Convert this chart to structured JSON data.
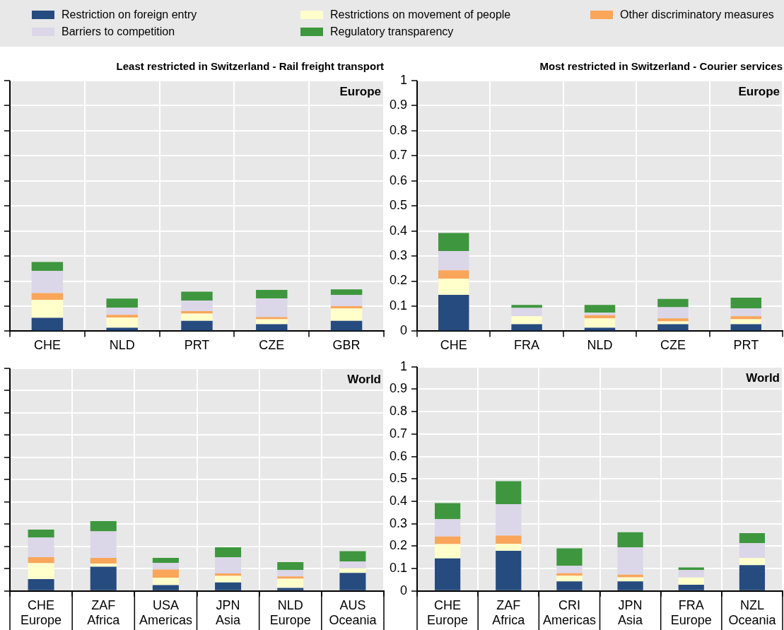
{
  "chart_data": [
    {
      "type": "bar",
      "title": "Least restricted in Switzerland - Rail freight transport",
      "categories": [
        "CHE",
        "NLD",
        "PRT",
        "CZE",
        "GBR"
      ],
      "stacked": true,
      "ylim": [
        0,
        1
      ],
      "yticks": [
        0,
        0.1,
        0.2,
        0.3,
        0.4,
        0.5,
        0.6,
        0.7,
        0.8,
        0.9,
        1
      ],
      "tick_labels": "x",
      "grid": true,
      "legend": "top",
      "annotations": [
        "Europe"
      ],
      "series": [
        {
          "name": "Restriction on foreign entry",
          "color": "#264b7f",
          "values": [
            0.053,
            0.014,
            0.041,
            0.028,
            0.041
          ]
        },
        {
          "name": "Restrictions on movement of people",
          "color": "#ffffcc",
          "values": [
            0.072,
            0.041,
            0.029,
            0.02,
            0.05
          ]
        },
        {
          "name": "Other discriminatory measures",
          "color": "#f9a65a",
          "values": [
            0.027,
            0.01,
            0.01,
            0.008,
            0.009
          ]
        },
        {
          "name": "Barriers to competition",
          "color": "#dcd6e9",
          "values": [
            0.088,
            0.029,
            0.042,
            0.075,
            0.044
          ]
        },
        {
          "name": "Regulatory transparency",
          "color": "#3e973e",
          "values": [
            0.036,
            0.036,
            0.036,
            0.034,
            0.023
          ]
        }
      ]
    },
    {
      "type": "bar",
      "title": "Most restricted in Switzerland - Courier services",
      "categories": [
        "CHE",
        "FRA",
        "NLD",
        "CZE",
        "PRT"
      ],
      "stacked": true,
      "ylim": [
        0,
        1
      ],
      "yticks": [
        0,
        0.1,
        0.2,
        0.3,
        0.4,
        0.5,
        0.6,
        0.7,
        0.8,
        0.9,
        1
      ],
      "grid": true,
      "legend": "top",
      "annotations": [
        "Europe"
      ],
      "series": [
        {
          "name": "Restriction on foreign entry",
          "color": "#264b7f",
          "values": [
            0.145,
            0.028,
            0.014,
            0.028,
            0.028
          ]
        },
        {
          "name": "Restrictions on movement of people",
          "color": "#ffffcc",
          "values": [
            0.064,
            0.032,
            0.037,
            0.011,
            0.02
          ]
        },
        {
          "name": "Other discriminatory measures",
          "color": "#f9a65a",
          "values": [
            0.034,
            0,
            0.013,
            0.012,
            0.012
          ]
        },
        {
          "name": "Barriers to competition",
          "color": "#dcd6e9",
          "values": [
            0.077,
            0.033,
            0.01,
            0.045,
            0.031
          ]
        },
        {
          "name": "Regulatory transparency",
          "color": "#3e973e",
          "values": [
            0.072,
            0.012,
            0.031,
            0.033,
            0.043
          ]
        }
      ]
    },
    {
      "type": "bar",
      "categories": [
        "CHE\nEurope",
        "ZAF\nAfrica",
        "USA\nAmericas",
        "JPN\nAsia",
        "NLD\nEurope",
        "AUS\nOceania"
      ],
      "stacked": true,
      "ylim": [
        0,
        1
      ],
      "yticks": [
        0,
        0.1,
        0.2,
        0.3,
        0.4,
        0.5,
        0.6,
        0.7,
        0.8,
        0.9,
        1
      ],
      "tick_labels": "x",
      "grid": true,
      "legend": "top",
      "annotations": [
        "World"
      ],
      "series": [
        {
          "name": "Restriction on foreign entry",
          "color": "#264b7f",
          "values": [
            0.053,
            0.109,
            0.026,
            0.038,
            0.014,
            0.081
          ]
        },
        {
          "name": "Restrictions on movement of people",
          "color": "#ffffcc",
          "values": [
            0.072,
            0.014,
            0.034,
            0.03,
            0.041,
            0.021
          ]
        },
        {
          "name": "Other discriminatory measures",
          "color": "#f9a65a",
          "values": [
            0.027,
            0.026,
            0.036,
            0.011,
            0.01,
            0
          ]
        },
        {
          "name": "Barriers to competition",
          "color": "#dcd6e9",
          "values": [
            0.088,
            0.119,
            0.03,
            0.072,
            0.029,
            0.031
          ]
        },
        {
          "name": "Regulatory transparency",
          "color": "#3e973e",
          "values": [
            0.036,
            0.046,
            0.023,
            0.045,
            0.036,
            0.046
          ]
        }
      ]
    },
    {
      "type": "bar",
      "categories": [
        "CHE\nEurope",
        "ZAF\nAfrica",
        "CRI\nAmericas",
        "JPN\nAsia",
        "FRA\nEurope",
        "NZL\nOceania"
      ],
      "stacked": true,
      "ylim": [
        0,
        1
      ],
      "yticks": [
        0,
        0.1,
        0.2,
        0.3,
        0.4,
        0.5,
        0.6,
        0.7,
        0.8,
        0.9,
        1
      ],
      "grid": true,
      "legend": "top",
      "annotations": [
        "World"
      ],
      "series": [
        {
          "name": "Restriction on foreign entry",
          "color": "#264b7f",
          "values": [
            0.145,
            0.179,
            0.043,
            0.043,
            0.028,
            0.115
          ]
        },
        {
          "name": "Restrictions on movement of people",
          "color": "#ffffcc",
          "values": [
            0.064,
            0.031,
            0.025,
            0.018,
            0.032,
            0.032
          ]
        },
        {
          "name": "Other discriminatory measures",
          "color": "#f9a65a",
          "values": [
            0.034,
            0.037,
            0.011,
            0.012,
            0,
            0
          ]
        },
        {
          "name": "Barriers to competition",
          "color": "#dcd6e9",
          "values": [
            0.077,
            0.14,
            0.033,
            0.122,
            0.033,
            0.066
          ]
        },
        {
          "name": "Regulatory transparency",
          "color": "#3e973e",
          "values": [
            0.072,
            0.103,
            0.078,
            0.067,
            0.012,
            0.045
          ]
        }
      ]
    }
  ]
}
